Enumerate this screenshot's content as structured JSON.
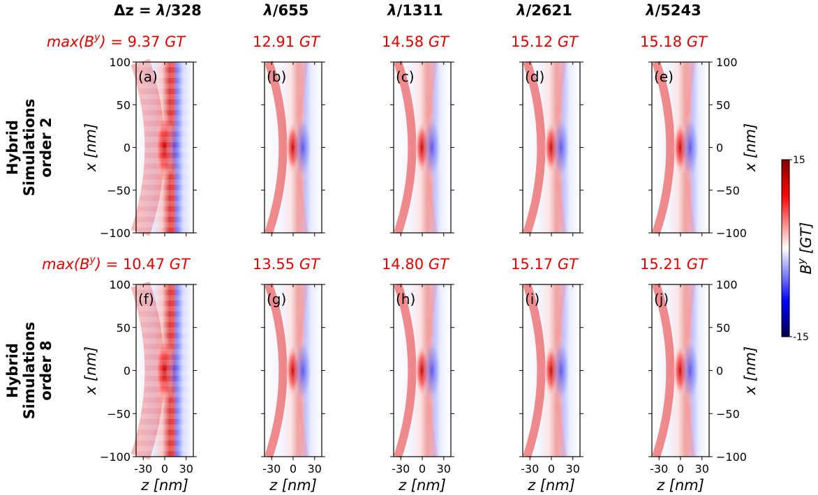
{
  "chart_data": {
    "type": "heatmap",
    "quantity": "magnetic field component B^y",
    "colormap": "seismic (blue-white-red)",
    "colorbar": {
      "min": -15,
      "max": 15,
      "ticks": [
        "15",
        "-15"
      ],
      "label_base": "B",
      "label_sup": "y",
      "label_unit": "[GT]"
    },
    "xlabel": {
      "var": "z",
      "unit": "[nm]"
    },
    "ylabel": {
      "var": "x",
      "unit": "[nm]"
    },
    "xlim": [
      -40,
      40
    ],
    "ylim": [
      -100,
      100
    ],
    "xticks": [
      "-30",
      "0",
      "30"
    ],
    "yticks": [
      "100",
      "50",
      "0",
      "−50",
      "−100"
    ],
    "columns": [
      {
        "resolution_prefix": "Δz = ",
        "resolution_lambda": "λ",
        "resolution_div": "/328"
      },
      {
        "resolution_prefix": "",
        "resolution_lambda": "λ",
        "resolution_div": "/655"
      },
      {
        "resolution_prefix": "",
        "resolution_lambda": "λ",
        "resolution_div": "/1311"
      },
      {
        "resolution_prefix": "",
        "resolution_lambda": "λ",
        "resolution_div": "/2621"
      },
      {
        "resolution_prefix": "",
        "resolution_lambda": "λ",
        "resolution_div": "/5243"
      }
    ],
    "rows": [
      {
        "label_line1": "Hybrid",
        "label_line2": "Simulations",
        "label_line3": "order 2",
        "max_prefix": "max(B",
        "max_sup": "y",
        "max_suffix": ") = ",
        "panels": [
          {
            "label": "(a)",
            "max_value": "9.37",
            "unit": "GT",
            "max_By_GT": 9.37
          },
          {
            "label": "(b)",
            "max_value": "12.91",
            "unit": "GT",
            "max_By_GT": 12.91
          },
          {
            "label": "(c)",
            "max_value": "14.58",
            "unit": "GT",
            "max_By_GT": 14.58
          },
          {
            "label": "(d)",
            "max_value": "15.12",
            "unit": "GT",
            "max_By_GT": 15.12
          },
          {
            "label": "(e)",
            "max_value": "15.18",
            "unit": "GT",
            "max_By_GT": 15.18
          }
        ]
      },
      {
        "label_line1": "Hybrid",
        "label_line2": "Simulations",
        "label_line3": "order 8",
        "max_prefix": "max(B",
        "max_sup": "y",
        "max_suffix": ") = ",
        "panels": [
          {
            "label": "(f)",
            "max_value": "10.47",
            "unit": "GT",
            "max_By_GT": 10.47
          },
          {
            "label": "(g)",
            "max_value": "13.55",
            "unit": "GT",
            "max_By_GT": 13.55
          },
          {
            "label": "(h)",
            "max_value": "14.80",
            "unit": "GT",
            "max_By_GT": 14.8
          },
          {
            "label": "(i)",
            "max_value": "15.17",
            "unit": "GT",
            "max_By_GT": 15.17
          },
          {
            "label": "(j)",
            "max_value": "15.21",
            "unit": "GT",
            "max_By_GT": 15.21
          }
        ]
      }
    ]
  }
}
